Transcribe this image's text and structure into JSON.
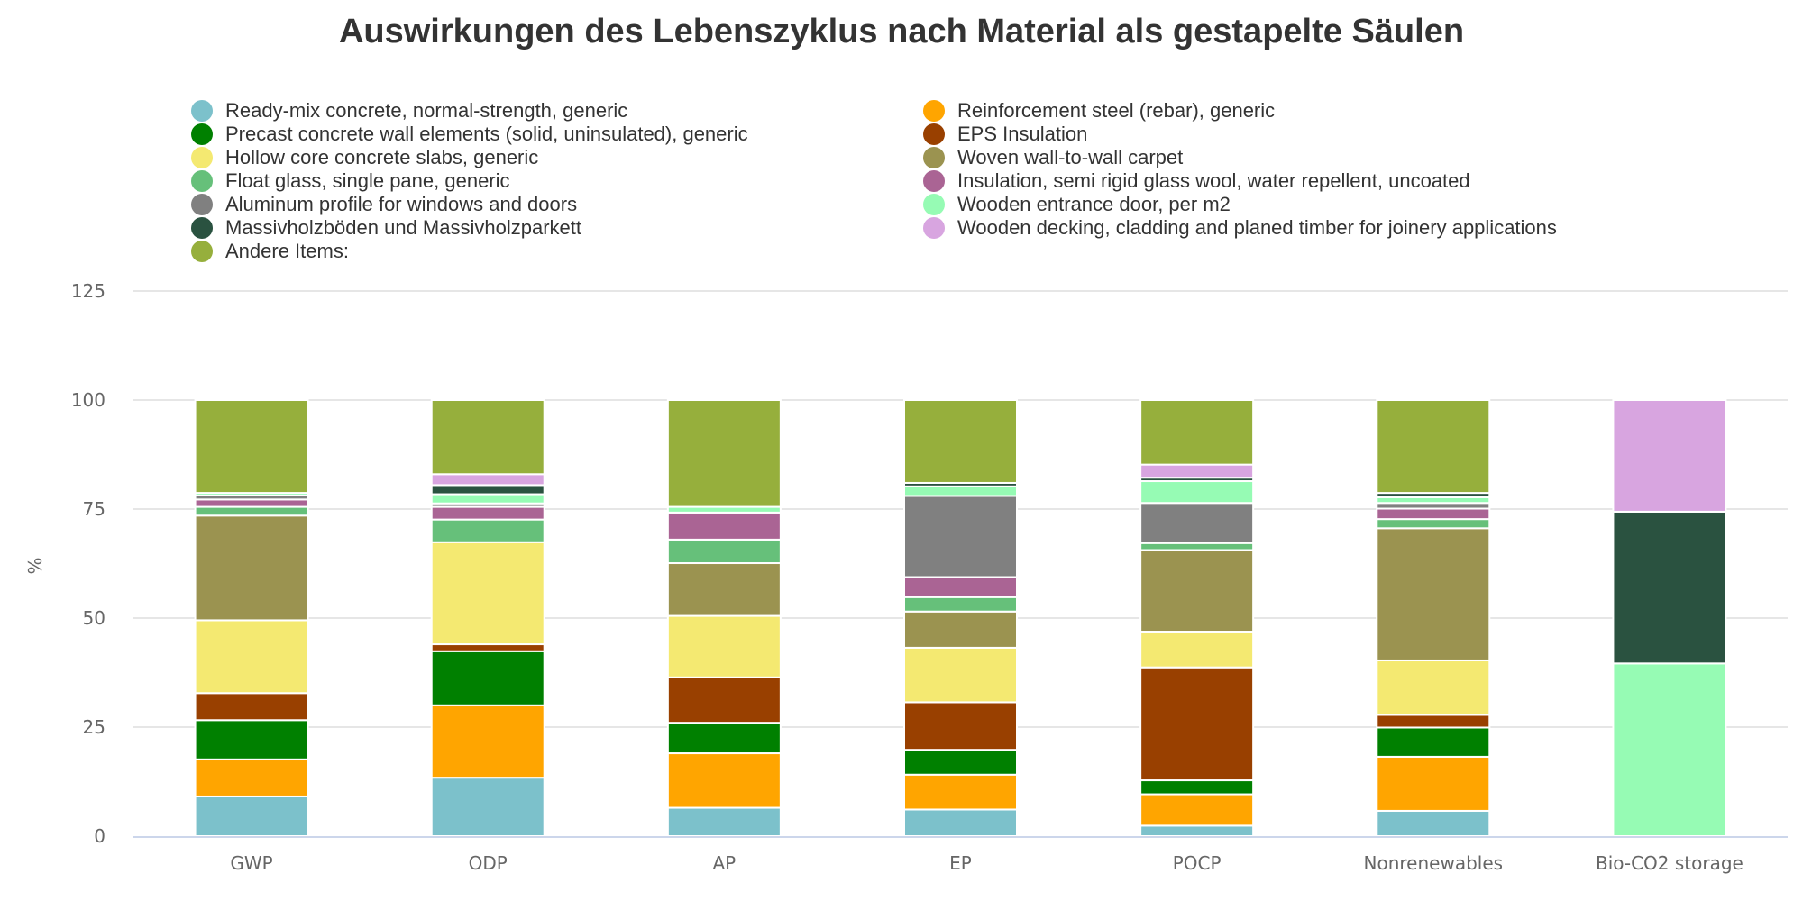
{
  "chart_data": {
    "type": "bar",
    "stacked": true,
    "title": "Auswirkungen des Lebenszyklus nach Material als gestapelte Säulen",
    "xlabel": "",
    "ylabel": "%",
    "ylim": [
      0,
      125
    ],
    "yticks": [
      0,
      25,
      50,
      75,
      100,
      125
    ],
    "grid": true,
    "legend_position": "top",
    "categories": [
      "GWP",
      "ODP",
      "AP",
      "EP",
      "POCP",
      "Nonrenewables",
      "Bio-CO2 storage"
    ],
    "series": [
      {
        "name": "Ready-mix concrete, normal-strength, generic",
        "color": "#7cc1cb",
        "values": [
          9.1,
          13.4,
          6.5,
          6.1,
          2.4,
          5.8,
          0
        ]
      },
      {
        "name": "Reinforcement steel (rebar), generic",
        "color": "#ffa500",
        "values": [
          8.5,
          16.6,
          12.5,
          8.0,
          7.2,
          12.4,
          0
        ]
      },
      {
        "name": "Precast concrete wall elements (solid, uninsulated), generic",
        "color": "#008000",
        "values": [
          9.0,
          12.4,
          7.0,
          5.7,
          3.2,
          6.7,
          0
        ]
      },
      {
        "name": "EPS Insulation",
        "color": "#994000",
        "values": [
          6.2,
          1.6,
          10.4,
          10.9,
          25.9,
          2.9,
          0
        ]
      },
      {
        "name": "Hollow core concrete slabs, generic",
        "color": "#f4e971",
        "values": [
          16.7,
          23.4,
          14.1,
          12.5,
          8.2,
          12.5,
          0
        ]
      },
      {
        "name": "Woven wall-to-wall carpet",
        "color": "#9b9350",
        "values": [
          24.0,
          0,
          12.1,
          8.3,
          18.7,
          30.3,
          0
        ]
      },
      {
        "name": "Float glass, single pane, generic",
        "color": "#66c07a",
        "values": [
          2.0,
          5.2,
          5.4,
          3.3,
          1.6,
          2.1,
          0
        ]
      },
      {
        "name": "Insulation, semi rigid glass wool, water repellent, uncoated",
        "color": "#aa6494",
        "values": [
          1.7,
          2.9,
          6.2,
          4.6,
          0,
          2.4,
          0
        ]
      },
      {
        "name": "Aluminum profile for windows and doors",
        "color": "#808080",
        "values": [
          0.9,
          0.8,
          0,
          18.6,
          9.2,
          1.3,
          0
        ]
      },
      {
        "name": "Wooden entrance door, per m2",
        "color": "#96fbb4",
        "values": [
          0.6,
          2.1,
          1.3,
          2.2,
          5.0,
          1.3,
          39.6
        ]
      },
      {
        "name": "Massivholzböden und Massivholzparkett",
        "color": "#2a5240",
        "values": [
          0,
          2.1,
          0,
          0.8,
          0.8,
          1.0,
          34.8
        ]
      },
      {
        "name": "Wooden decking, cladding and planed timber for joinery applications",
        "color": "#d8a5e0",
        "values": [
          0,
          2.5,
          0,
          0,
          3.0,
          0,
          25.6
        ]
      },
      {
        "name": "Andere Items:",
        "color": "#96af3c",
        "values": [
          21.3,
          17.0,
          24.5,
          19.0,
          14.8,
          21.3,
          0
        ]
      }
    ]
  },
  "legend": {
    "left": [
      {
        "label": "Ready-mix concrete, normal-strength, generic",
        "color": "#7cc1cb"
      },
      {
        "label": "Precast concrete wall elements (solid, uninsulated), generic",
        "color": "#008000"
      },
      {
        "label": "Hollow core concrete slabs, generic",
        "color": "#f4e971"
      },
      {
        "label": "Float glass, single pane, generic",
        "color": "#66c07a"
      },
      {
        "label": "Aluminum profile for windows and doors",
        "color": "#808080"
      },
      {
        "label": "Massivholzböden und Massivholzparkett",
        "color": "#2a5240"
      },
      {
        "label": "Andere Items:",
        "color": "#96af3c"
      }
    ],
    "right": [
      {
        "label": "Reinforcement steel (rebar), generic",
        "color": "#ffa500"
      },
      {
        "label": "EPS Insulation",
        "color": "#994000"
      },
      {
        "label": "Woven wall-to-wall carpet",
        "color": "#9b9350"
      },
      {
        "label": "Insulation, semi rigid glass wool, water repellent, uncoated",
        "color": "#aa6494"
      },
      {
        "label": "Wooden entrance door, per m2",
        "color": "#96fbb4"
      },
      {
        "label": "Wooden decking, cladding and planed timber for joinery applications",
        "color": "#d8a5e0"
      }
    ]
  }
}
